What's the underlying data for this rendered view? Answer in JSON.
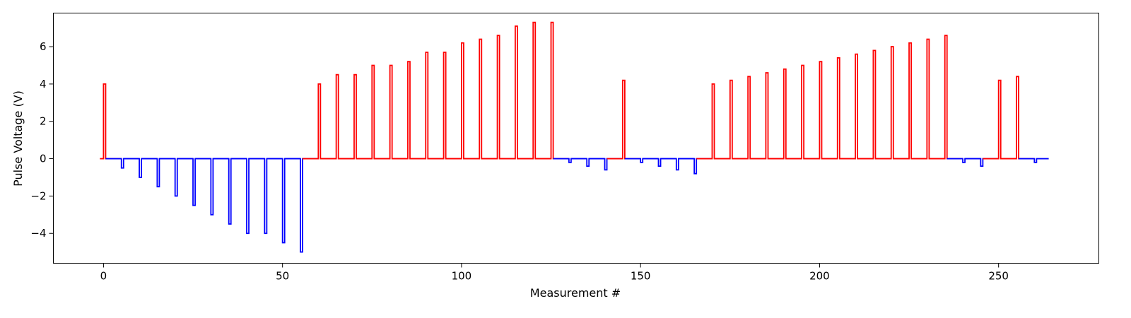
{
  "chart_data": {
    "type": "line",
    "title": "",
    "xlabel": "Measurement #",
    "ylabel": "Pulse Voltage (V)",
    "xlim": [
      -14,
      278
    ],
    "ylim": [
      -5.6,
      7.8
    ],
    "x_ticks": [
      0,
      50,
      100,
      150,
      200,
      250
    ],
    "x_tick_labels": [
      "0",
      "50",
      "100",
      "150",
      "200",
      "250"
    ],
    "y_ticks": [
      -4,
      -2,
      0,
      2,
      4,
      6
    ],
    "y_tick_labels": [
      "−4",
      "−2",
      "0",
      "2",
      "4",
      "6"
    ],
    "grid": false,
    "legend": "none",
    "pulse_width": 0.6,
    "segment_start": -1,
    "segment_end": 264,
    "colors": {
      "positive": "#ff0000",
      "negative": "#0000ff"
    },
    "pulses": [
      {
        "x": 0,
        "v": 4.0
      },
      {
        "x": 5,
        "v": -0.5
      },
      {
        "x": 10,
        "v": -1.0
      },
      {
        "x": 15,
        "v": -1.5
      },
      {
        "x": 20,
        "v": -2.0
      },
      {
        "x": 25,
        "v": -2.5
      },
      {
        "x": 30,
        "v": -3.0
      },
      {
        "x": 35,
        "v": -3.5
      },
      {
        "x": 40,
        "v": -4.0
      },
      {
        "x": 45,
        "v": -4.0
      },
      {
        "x": 50,
        "v": -4.5
      },
      {
        "x": 55,
        "v": -5.0
      },
      {
        "x": 60,
        "v": 4.0
      },
      {
        "x": 65,
        "v": 4.5
      },
      {
        "x": 70,
        "v": 4.5
      },
      {
        "x": 75,
        "v": 5.0
      },
      {
        "x": 80,
        "v": 5.0
      },
      {
        "x": 85,
        "v": 5.2
      },
      {
        "x": 90,
        "v": 5.7
      },
      {
        "x": 95,
        "v": 5.7
      },
      {
        "x": 100,
        "v": 6.2
      },
      {
        "x": 105,
        "v": 6.4
      },
      {
        "x": 110,
        "v": 6.6
      },
      {
        "x": 115,
        "v": 7.1
      },
      {
        "x": 120,
        "v": 7.3
      },
      {
        "x": 125,
        "v": 7.3
      },
      {
        "x": 130,
        "v": -0.2
      },
      {
        "x": 135,
        "v": -0.4
      },
      {
        "x": 140,
        "v": -0.6
      },
      {
        "x": 145,
        "v": 4.2
      },
      {
        "x": 150,
        "v": -0.2
      },
      {
        "x": 155,
        "v": -0.4
      },
      {
        "x": 160,
        "v": -0.6
      },
      {
        "x": 165,
        "v": -0.8
      },
      {
        "x": 170,
        "v": 4.0
      },
      {
        "x": 175,
        "v": 4.2
      },
      {
        "x": 180,
        "v": 4.4
      },
      {
        "x": 185,
        "v": 4.6
      },
      {
        "x": 190,
        "v": 4.8
      },
      {
        "x": 195,
        "v": 5.0
      },
      {
        "x": 200,
        "v": 5.2
      },
      {
        "x": 205,
        "v": 5.4
      },
      {
        "x": 210,
        "v": 5.6
      },
      {
        "x": 215,
        "v": 5.8
      },
      {
        "x": 220,
        "v": 6.0
      },
      {
        "x": 225,
        "v": 6.2
      },
      {
        "x": 230,
        "v": 6.4
      },
      {
        "x": 235,
        "v": 6.6
      },
      {
        "x": 240,
        "v": -0.2
      },
      {
        "x": 245,
        "v": -0.4
      },
      {
        "x": 250,
        "v": 4.2
      },
      {
        "x": 255,
        "v": 4.4
      },
      {
        "x": 260,
        "v": -0.2
      }
    ]
  }
}
